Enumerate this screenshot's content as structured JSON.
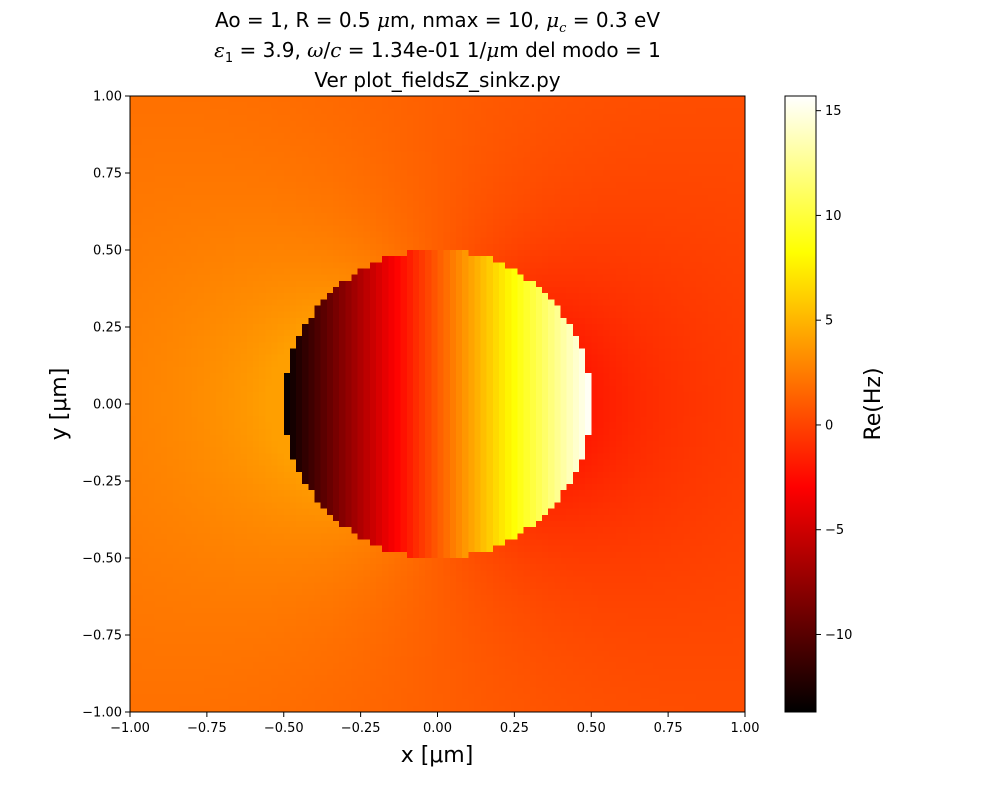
{
  "chart_data": {
    "type": "heatmap",
    "title_parts": {
      "line1_a": "Ao = 1, R = 0.5 ",
      "line1_mu": "μ",
      "line1_b": "m, nmax = 10, ",
      "line1_muc": "μ",
      "line1_c_sub": "c",
      "line1_d": " = 0.3 eV",
      "line2_eps": "ε",
      "line2_eps_sub": "1",
      "line2_b": " = 3.9, ",
      "line2_omega": "ω",
      "line2_slash": "/",
      "line2_c": "c",
      "line2_d": " = 1.34e-01 1/",
      "line2_mu": "μ",
      "line2_e": "m del modo = 1",
      "line3": "Ver plot_fieldsZ_sinkz.py"
    },
    "xlabel": "x [μm]",
    "ylabel": "y [μm]",
    "colorbar_label": "Re(Hz)",
    "xlim": [
      -1.0,
      1.0
    ],
    "ylim": [
      -1.0,
      1.0
    ],
    "x_ticks": [
      "−1.00",
      "−0.75",
      "−0.50",
      "−0.25",
      "0.00",
      "0.25",
      "0.50",
      "0.75",
      "1.00"
    ],
    "y_ticks": [
      "−1.00",
      "−0.75",
      "−0.50",
      "−0.25",
      "0.00",
      "0.25",
      "0.50",
      "0.75",
      "1.00"
    ],
    "x_tick_values": [
      -1.0,
      -0.75,
      -0.5,
      -0.25,
      0.0,
      0.25,
      0.5,
      0.75,
      1.0
    ],
    "y_tick_values": [
      -1.0,
      -0.75,
      -0.5,
      -0.25,
      0.0,
      0.25,
      0.5,
      0.75,
      1.0
    ],
    "colorbar_ticks": [
      "−10",
      "−5",
      "0",
      "5",
      "10",
      "15"
    ],
    "colorbar_tick_values": [
      -10,
      -5,
      0,
      5,
      10,
      15
    ],
    "colorbar_range": [
      -13.7,
      15.7
    ],
    "colormap": "hot",
    "circle_radius": 0.5,
    "inside_field_range": [
      -13.7,
      15.7
    ],
    "outside_field_range": [
      -2.2,
      4.0
    ],
    "grid": false
  }
}
